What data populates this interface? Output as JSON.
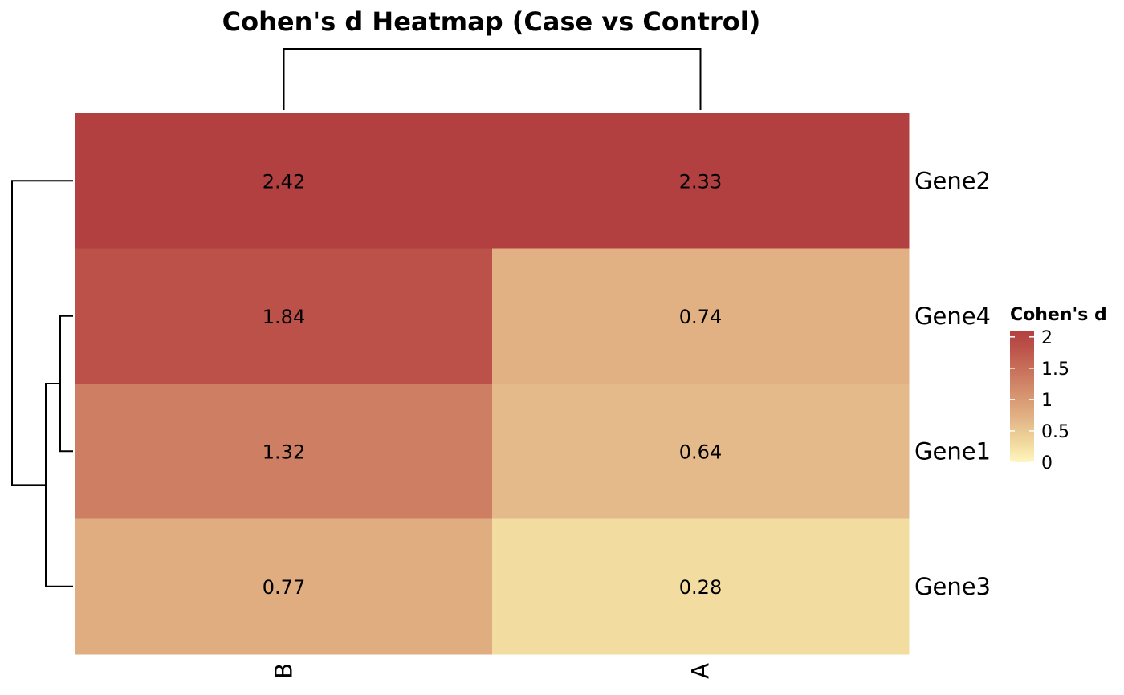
{
  "chart_data": {
    "type": "heatmap",
    "title": "Cohen's d Heatmap (Case vs Control)",
    "columns": [
      "B",
      "A"
    ],
    "rows": [
      "Gene2",
      "Gene4",
      "Gene1",
      "Gene3"
    ],
    "values": [
      [
        2.42,
        2.33
      ],
      [
        1.84,
        0.74
      ],
      [
        1.32,
        0.64
      ],
      [
        0.77,
        0.28
      ]
    ],
    "value_labels": [
      [
        "2.42",
        "2.33"
      ],
      [
        "1.84",
        "0.74"
      ],
      [
        "1.32",
        "0.64"
      ],
      [
        "0.77",
        "0.28"
      ]
    ],
    "legend": {
      "title": "Cohen's d",
      "ticks": [
        2,
        1.5,
        1,
        0.5,
        0
      ],
      "tick_labels": [
        "2",
        "1.5",
        "1",
        "0.5",
        "0"
      ],
      "range": [
        0,
        2.1
      ]
    },
    "color_scale": {
      "low": "#FFF6C0",
      "mid": "#E0B07E",
      "high": "#B24040",
      "stops": [
        {
          "v": 0.0,
          "c": "#FFF6C0"
        },
        {
          "v": 0.3,
          "c": "#F1DA9E"
        },
        {
          "v": 0.65,
          "c": "#E4B98A"
        },
        {
          "v": 0.75,
          "c": "#E1AF82"
        },
        {
          "v": 1.3,
          "c": "#CE8064"
        },
        {
          "v": 1.85,
          "c": "#BB5049"
        },
        {
          "v": 2.1,
          "c": "#B24040"
        }
      ]
    },
    "row_dendrogram": true,
    "column_dendrogram": true
  }
}
